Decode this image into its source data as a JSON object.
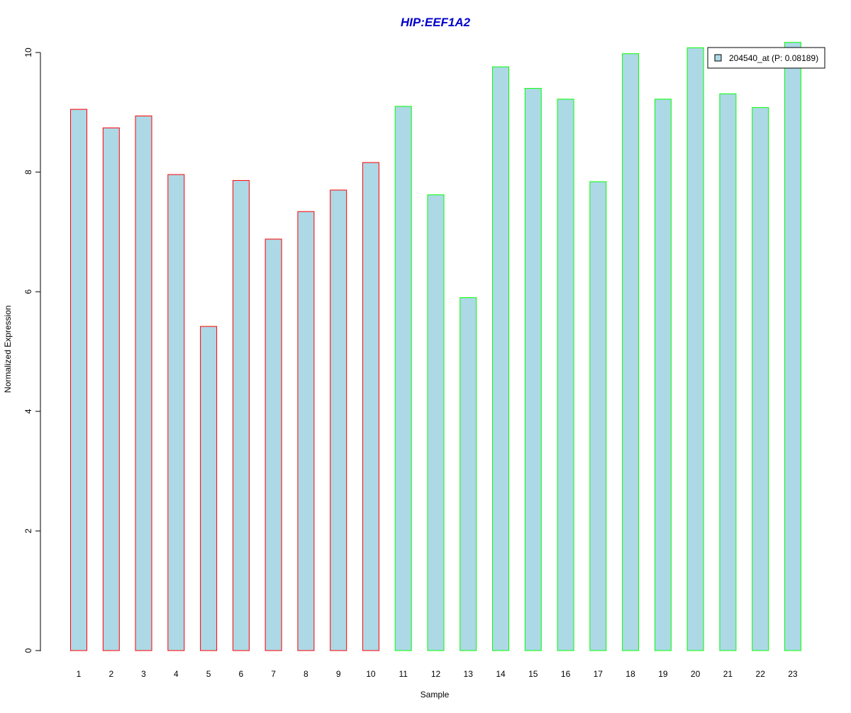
{
  "chart_data": {
    "type": "bar",
    "title": "HIP:EEF1A2",
    "xlabel": "Sample",
    "ylabel": "Normalized Expression",
    "ylim": [
      0,
      10
    ],
    "yticks": [
      "0",
      "2",
      "4",
      "6",
      "8",
      "10"
    ],
    "categories": [
      "1",
      "2",
      "3",
      "4",
      "5",
      "6",
      "7",
      "8",
      "9",
      "10",
      "11",
      "12",
      "13",
      "14",
      "15",
      "16",
      "17",
      "18",
      "19",
      "20",
      "21",
      "22",
      "23"
    ],
    "values": [
      9.05,
      8.74,
      8.94,
      7.96,
      5.42,
      7.86,
      6.88,
      7.34,
      7.7,
      8.16,
      9.1,
      7.62,
      5.9,
      9.76,
      9.4,
      9.22,
      7.84,
      9.98,
      9.22,
      10.08,
      9.31,
      9.08,
      10.17
    ],
    "groups": [
      0,
      0,
      0,
      0,
      0,
      0,
      0,
      0,
      0,
      0,
      1,
      1,
      1,
      1,
      1,
      1,
      1,
      1,
      1,
      1,
      1,
      1,
      1
    ],
    "group_border_colors": [
      "#ff0000",
      "#00ff00"
    ],
    "bar_fill": "#add8e6",
    "title_color": "#0000cc",
    "legend": {
      "label": "204540_at (P: 0.08189)",
      "position": "top-right"
    },
    "grid": false
  }
}
